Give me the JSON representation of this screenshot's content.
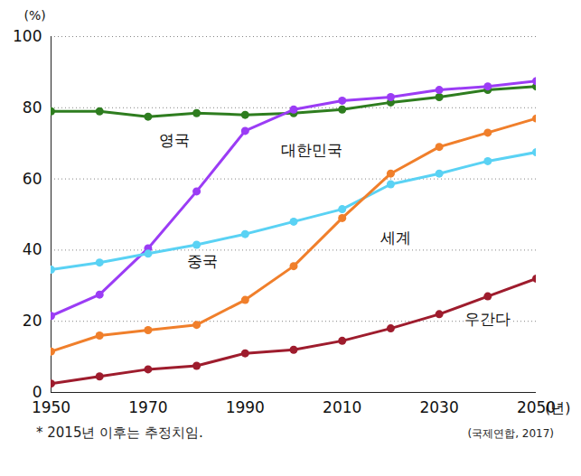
{
  "chart_data": {
    "type": "line",
    "x": [
      1950,
      1960,
      1970,
      1980,
      1990,
      2000,
      2010,
      2020,
      2030,
      2040,
      2050
    ],
    "series": [
      {
        "name": "영국",
        "color": "#2e7d1f",
        "values": [
          79,
          79,
          77.5,
          78.5,
          78,
          78.5,
          79.5,
          81.5,
          83,
          85,
          86
        ]
      },
      {
        "name": "대한민국",
        "color": "#9b3cf5",
        "values": [
          21.5,
          27.5,
          40.5,
          56.5,
          73.5,
          79.5,
          82,
          83,
          85,
          86,
          87.5
        ]
      },
      {
        "name": "중국",
        "color": "#5ad2f4",
        "values": [
          34.5,
          36.5,
          39,
          41.5,
          44.5,
          48,
          51.5,
          58.5,
          61.5,
          65,
          67.5
        ]
      },
      {
        "name": "세계",
        "color": "#f07f2b",
        "values": [
          11.5,
          16,
          17.5,
          19,
          26,
          35.5,
          49,
          61.5,
          69,
          73,
          77
        ]
      },
      {
        "name": "우간다",
        "color": "#9e1c2d",
        "values": [
          2.5,
          4.5,
          6.5,
          7.5,
          11,
          12,
          14.5,
          18,
          22,
          27,
          32
        ]
      }
    ],
    "xlim": [
      1950,
      2050
    ],
    "xticks": [
      1950,
      1970,
      1990,
      2010,
      2030,
      2050
    ],
    "ylim": [
      0,
      100
    ],
    "yticks": [
      0,
      20,
      40,
      60,
      80,
      100
    ],
    "x_label": "(년)",
    "y_label": "(%)",
    "note": "* 2015년 이후는 추정치임.",
    "source": "(국제연합, 2017)",
    "grid": true,
    "marker": "circle",
    "line_style": "solid"
  }
}
